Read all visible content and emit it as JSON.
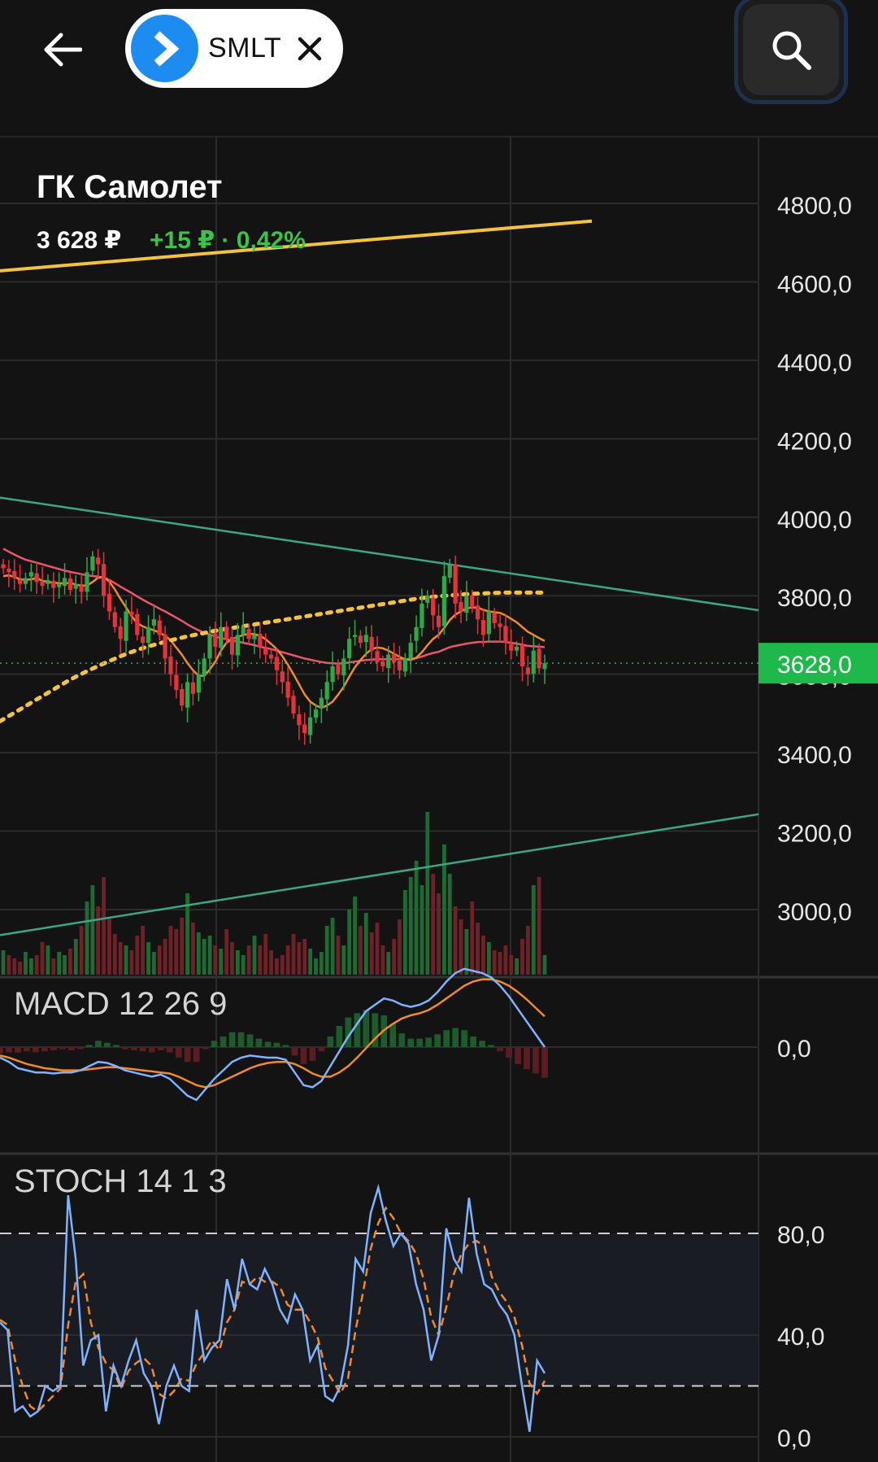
{
  "header": {
    "ticker": "SMLT",
    "icons": {
      "back": "arrow-left-icon",
      "logo": "chevron-right-icon",
      "close": "close-icon",
      "search": "search-icon"
    }
  },
  "stock": {
    "name": "ГК Самолет",
    "price": "3 628 ₽",
    "change": "+15 ₽ · 0,42%"
  },
  "colors": {
    "background": "#131313",
    "grid": "#2c2c2c",
    "up": "#2ea84a",
    "down": "#e5323d",
    "current_price_badge": "#1fb84a",
    "trend_upper": "#f5c33b",
    "channel": "#3aa886",
    "ma_fast": "#f08a2a",
    "ma_slow": "#e8556d",
    "macd_line": "#7fb2ff",
    "macd_signal": "#f08a2a",
    "stoch_k": "#7fb2ff",
    "stoch_d": "#f08a2a"
  },
  "chart_data": [
    {
      "type": "candlestick",
      "title": "ГК Самолет",
      "ylim": [
        2850,
        4950
      ],
      "yticks": [
        "4800,0",
        "4600,0",
        "4400,0",
        "4200,0",
        "4000,0",
        "3800,0",
        "3600,0",
        "3400,0",
        "3200,0",
        "3000,0"
      ],
      "ytick_values": [
        4800,
        4600,
        4400,
        4200,
        4000,
        3800,
        3600,
        3400,
        3200,
        3000
      ],
      "current_price": 3628,
      "current_price_label": "3628,0",
      "close": [
        3870,
        3860,
        3845,
        3830,
        3845,
        3860,
        3835,
        3825,
        3840,
        3820,
        3830,
        3845,
        3815,
        3830,
        3810,
        3860,
        3900,
        3880,
        3800,
        3760,
        3720,
        3690,
        3760,
        3750,
        3700,
        3680,
        3720,
        3740,
        3700,
        3640,
        3600,
        3560,
        3520,
        3580,
        3550,
        3600,
        3640,
        3700,
        3670,
        3720,
        3690,
        3650,
        3700,
        3720,
        3690,
        3700,
        3670,
        3650,
        3640,
        3610,
        3580,
        3540,
        3500,
        3470,
        3450,
        3490,
        3510,
        3540,
        3580,
        3620,
        3600,
        3640,
        3690,
        3700,
        3680,
        3700,
        3660,
        3630,
        3620,
        3650,
        3630,
        3610,
        3640,
        3680,
        3720,
        3780,
        3800,
        3750,
        3720,
        3850,
        3880,
        3780,
        3760,
        3800,
        3770,
        3740,
        3700,
        3760,
        3730,
        3720,
        3680,
        3660,
        3670,
        3620,
        3600,
        3660,
        3615,
        3628
      ],
      "sma_fast_approx": [
        3850,
        3852,
        3848,
        3842,
        3840,
        3842,
        3845,
        3838,
        3835,
        3833,
        3832,
        3831,
        3833,
        3828,
        3826,
        3826,
        3835,
        3846,
        3848,
        3836,
        3816,
        3792,
        3770,
        3748,
        3730,
        3722,
        3716,
        3712,
        3706,
        3698,
        3686,
        3668,
        3650,
        3628,
        3610,
        3596,
        3596,
        3612,
        3632,
        3660,
        3680,
        3690,
        3695,
        3700,
        3703,
        3702,
        3698,
        3689,
        3677,
        3664,
        3646,
        3624,
        3600,
        3574,
        3548,
        3530,
        3520,
        3514,
        3520,
        3530,
        3548,
        3568,
        3594,
        3618,
        3636,
        3652,
        3664,
        3668,
        3666,
        3660,
        3652,
        3644,
        3638,
        3636,
        3642,
        3656,
        3674,
        3690,
        3700,
        3718,
        3738,
        3752,
        3760,
        3768,
        3770,
        3770,
        3764,
        3760,
        3758,
        3756,
        3750,
        3741,
        3732,
        3720,
        3708,
        3700,
        3692,
        3685
      ],
      "sma_slow_approx": [
        3920,
        3912,
        3905,
        3898,
        3892,
        3888,
        3884,
        3880,
        3876,
        3872,
        3868,
        3864,
        3861,
        3858,
        3855,
        3852,
        3850,
        3849,
        3846,
        3840,
        3832,
        3823,
        3815,
        3807,
        3798,
        3790,
        3782,
        3775,
        3767,
        3760,
        3752,
        3744,
        3736,
        3727,
        3719,
        3712,
        3706,
        3701,
        3696,
        3692,
        3689,
        3686,
        3683,
        3680,
        3677,
        3674,
        3670,
        3667,
        3664,
        3660,
        3656,
        3652,
        3648,
        3644,
        3640,
        3637,
        3634,
        3631,
        3629,
        3628,
        3627,
        3628,
        3630,
        3632,
        3634,
        3636,
        3637,
        3638,
        3638,
        3638,
        3638,
        3638,
        3638,
        3639,
        3641,
        3645,
        3650,
        3654,
        3657,
        3663,
        3669,
        3672,
        3675,
        3678,
        3680,
        3682,
        3682,
        3683,
        3683,
        3683,
        3682,
        3680,
        3678,
        3675,
        3672,
        3671,
        3670,
        3669
      ],
      "sma_dotted_approx": [
        3480,
        3495,
        3510,
        3525,
        3540,
        3555,
        3570,
        3585,
        3598,
        3610,
        3622,
        3633,
        3644,
        3654,
        3663,
        3671,
        3678,
        3685,
        3691,
        3697,
        3702,
        3707,
        3712,
        3716,
        3720,
        3724,
        3728,
        3732,
        3736,
        3740,
        3744,
        3748,
        3752,
        3756,
        3760,
        3764,
        3768,
        3772,
        3776,
        3780,
        3784,
        3788,
        3792,
        3795,
        3798,
        3800,
        3802,
        3804,
        3805,
        3806,
        3807,
        3808,
        3808,
        3808,
        3808,
        3808
      ],
      "volume_relative": [
        0.15,
        0.12,
        0.1,
        0.08,
        0.14,
        0.1,
        0.12,
        0.2,
        0.18,
        0.1,
        0.14,
        0.12,
        0.16,
        0.22,
        0.3,
        0.45,
        0.55,
        0.42,
        0.6,
        0.35,
        0.25,
        0.2,
        0.18,
        0.15,
        0.24,
        0.3,
        0.2,
        0.14,
        0.18,
        0.22,
        0.3,
        0.28,
        0.35,
        0.5,
        0.32,
        0.26,
        0.22,
        0.24,
        0.18,
        0.16,
        0.28,
        0.2,
        0.15,
        0.12,
        0.18,
        0.24,
        0.18,
        0.25,
        0.15,
        0.1,
        0.12,
        0.18,
        0.25,
        0.2,
        0.22,
        0.16,
        0.1,
        0.14,
        0.3,
        0.35,
        0.24,
        0.18,
        0.4,
        0.48,
        0.3,
        0.38,
        0.26,
        0.32,
        0.18,
        0.14,
        0.22,
        0.34,
        0.52,
        0.6,
        0.7,
        0.55,
        1.0,
        0.62,
        0.5,
        0.8,
        0.62,
        0.42,
        0.34,
        0.28,
        0.45,
        0.32,
        0.24,
        0.2,
        0.15,
        0.14,
        0.18,
        0.12,
        0.1,
        0.22,
        0.3,
        0.55,
        0.6,
        0.12
      ]
    },
    {
      "type": "line",
      "title": "MACD 12 26 9",
      "yticks": [
        "0,0"
      ],
      "ytick_values": [
        0
      ],
      "ylim": [
        -60,
        80
      ],
      "macd": [
        -10,
        -14,
        -20,
        -22,
        -24,
        -24,
        -25,
        -24,
        -24,
        -22,
        -18,
        -14,
        -15,
        -18,
        -22,
        -24,
        -26,
        -28,
        -26,
        -30,
        -38,
        -46,
        -50,
        -40,
        -30,
        -22,
        -14,
        -10,
        -8,
        -9,
        -10,
        -10,
        -12,
        -24,
        -36,
        -38,
        -32,
        -18,
        -4,
        10,
        22,
        34,
        40,
        46,
        44,
        40,
        38,
        40,
        44,
        52,
        62,
        70,
        74,
        72,
        70,
        66,
        58,
        48,
        36,
        24,
        12,
        0
      ],
      "signal": [
        -8,
        -10,
        -13,
        -16,
        -18,
        -20,
        -21,
        -22,
        -22,
        -22,
        -21,
        -20,
        -19,
        -19,
        -20,
        -21,
        -22,
        -23,
        -24,
        -25,
        -28,
        -32,
        -36,
        -38,
        -36,
        -32,
        -28,
        -24,
        -20,
        -17,
        -15,
        -14,
        -14,
        -16,
        -20,
        -25,
        -28,
        -28,
        -24,
        -18,
        -10,
        -1,
        8,
        16,
        22,
        27,
        30,
        32,
        35,
        40,
        46,
        52,
        58,
        62,
        64,
        64,
        62,
        58,
        52,
        45,
        37,
        29
      ],
      "histogram": [
        -6,
        -5,
        -5,
        -4,
        -5,
        -4,
        -3,
        -2,
        -3,
        -2,
        2,
        6,
        4,
        2,
        -2,
        -3,
        -4,
        -5,
        -3,
        -5,
        -10,
        -14,
        -14,
        -2,
        6,
        10,
        14,
        14,
        12,
        8,
        5,
        4,
        2,
        -8,
        -16,
        -13,
        -4,
        10,
        20,
        28,
        32,
        35,
        32,
        30,
        22,
        13,
        8,
        8,
        9,
        12,
        16,
        18,
        16,
        10,
        6,
        2,
        -4,
        -10,
        -16,
        -21,
        -25,
        -29
      ]
    },
    {
      "type": "line",
      "title": "STOCH 14 1 3",
      "ylim": [
        0,
        100
      ],
      "yticks": [
        "80,0",
        "40,0",
        "0,0"
      ],
      "ytick_values": [
        80,
        40,
        0
      ],
      "bands": [
        80,
        20
      ],
      "k": [
        45,
        42,
        10,
        12,
        8,
        10,
        20,
        18,
        20,
        95,
        70,
        28,
        38,
        40,
        10,
        28,
        20,
        30,
        38,
        25,
        20,
        5,
        20,
        28,
        20,
        18,
        50,
        30,
        35,
        38,
        62,
        50,
        70,
        60,
        58,
        66,
        60,
        50,
        45,
        56,
        50,
        30,
        36,
        16,
        14,
        20,
        36,
        70,
        65,
        88,
        98,
        85,
        75,
        80,
        76,
        60,
        50,
        30,
        40,
        82,
        70,
        65,
        94,
        72,
        60,
        58,
        52,
        48,
        40,
        20,
        2,
        30,
        25
      ],
      "d": [
        46,
        44,
        30,
        20,
        12,
        10,
        13,
        16,
        19,
        44,
        61,
        64,
        45,
        35,
        29,
        26,
        19,
        26,
        29,
        31,
        28,
        17,
        15,
        18,
        23,
        22,
        29,
        33,
        38,
        34,
        45,
        50,
        61,
        60,
        63,
        61,
        61,
        59,
        52,
        50,
        50,
        45,
        39,
        27,
        22,
        17,
        23,
        42,
        57,
        74,
        84,
        90,
        86,
        80,
        77,
        72,
        62,
        47,
        40,
        51,
        64,
        72,
        76,
        77,
        75,
        63,
        57,
        53,
        47,
        36,
        21,
        17,
        22
      ]
    }
  ]
}
